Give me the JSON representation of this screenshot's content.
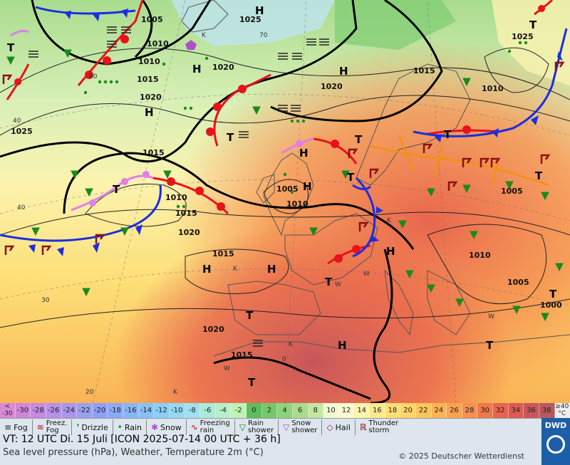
{
  "map": {
    "high_labels": [
      "H",
      "H",
      "H",
      "H",
      "H",
      "H",
      "H",
      "H",
      "H",
      "H"
    ],
    "low_labels": [
      "T",
      "T",
      "T",
      "T",
      "T",
      "T",
      "T",
      "T",
      "T",
      "T",
      "T",
      "T",
      "T"
    ],
    "isobar_labels": [
      "1005",
      "1010",
      "1015",
      "1020",
      "1025",
      "1010",
      "1020",
      "1015",
      "1010",
      "1015",
      "1020",
      "1005",
      "1010",
      "1015",
      "1020",
      "1025",
      "1020",
      "1015",
      "1010",
      "1005",
      "1015",
      "1010",
      "1005",
      "1000",
      "1025"
    ],
    "temp_labels": [
      "40",
      "40",
      "30",
      "20",
      "0",
      "70",
      "80"
    ],
    "region_labels": [
      "K",
      "K",
      "K",
      "W",
      "W",
      "W",
      "W",
      "K",
      "K"
    ]
  },
  "colorbar": {
    "cells": [
      {
        "label": "<\n-30",
        "color": "#d98ad6"
      },
      {
        "label": "-30",
        "color": "#cf86d9"
      },
      {
        "label": "-28",
        "color": "#c58ae0"
      },
      {
        "label": "-26",
        "color": "#b890e8"
      },
      {
        "label": "-24",
        "color": "#a896ee"
      },
      {
        "label": "-22",
        "color": "#9aa0f2"
      },
      {
        "label": "-20",
        "color": "#8f9ff5"
      },
      {
        "label": "-18",
        "color": "#8aaaf7"
      },
      {
        "label": "-16",
        "color": "#87b6f8"
      },
      {
        "label": "-14",
        "color": "#86c2f7"
      },
      {
        "label": "-12",
        "color": "#8bcef5"
      },
      {
        "label": "-10",
        "color": "#95d8f2"
      },
      {
        "label": "-8",
        "color": "#a1e0ee"
      },
      {
        "label": "-6",
        "color": "#acead8"
      },
      {
        "label": "-4",
        "color": "#b9eec8"
      },
      {
        "label": "-2",
        "color": "#bff2b5"
      },
      {
        "label": "0",
        "color": "#5ebd5e"
      },
      {
        "label": "2",
        "color": "#74c86a"
      },
      {
        "label": "4",
        "color": "#8fd27c"
      },
      {
        "label": "6",
        "color": "#a9dc8e"
      },
      {
        "label": "8",
        "color": "#c4e6a4"
      },
      {
        "label": "10",
        "color": "#f2f8d0"
      },
      {
        "label": "12",
        "color": "#fafad0"
      },
      {
        "label": "14",
        "color": "#fbf3b0"
      },
      {
        "label": "16",
        "color": "#fbe98e"
      },
      {
        "label": "18",
        "color": "#fddf77"
      },
      {
        "label": "20",
        "color": "#fdd466"
      },
      {
        "label": "22",
        "color": "#fcc55b"
      },
      {
        "label": "24",
        "color": "#fab454"
      },
      {
        "label": "26",
        "color": "#f8a250"
      },
      {
        "label": "28",
        "color": "#f58e4e"
      },
      {
        "label": "30",
        "color": "#f0784c"
      },
      {
        "label": "32",
        "color": "#e8654d"
      },
      {
        "label": "34",
        "color": "#dc5a52"
      },
      {
        "label": "36",
        "color": "#c8565a"
      },
      {
        "label": "38",
        "color": "#b55a60"
      },
      {
        "label": "≥40\n°C",
        "color": "#eeeeee"
      }
    ]
  },
  "legend": {
    "fog": "Fog",
    "freezing_fog": "Freez.\nFog",
    "drizzle": "Drizzle",
    "rain": "Rain",
    "snow": "Snow",
    "freezing_rain": "Freezing\nrain",
    "rain_shower": "Rain\nshower",
    "snow_shower": "Snow\nshower",
    "hail": "Hail",
    "thunderstorm": "Thunder\nstorm"
  },
  "footer": {
    "valid_time": "VT: 12 UTC Di.  15 Juli [ICON 2025-07-14  00 UTC + 36 h]",
    "subtitle": "Sea level pressure (hPa), Weather, Temperature 2m (°C)",
    "copyright": "© 2025 Deutscher Wetterdienst",
    "logo_text": "DWD"
  },
  "colors": {
    "warm_front": "#e8121b",
    "cold_front": "#1a2ee0",
    "occluded_front": "#e07ee8",
    "trough": "#f59010",
    "isobar": "#000000"
  }
}
